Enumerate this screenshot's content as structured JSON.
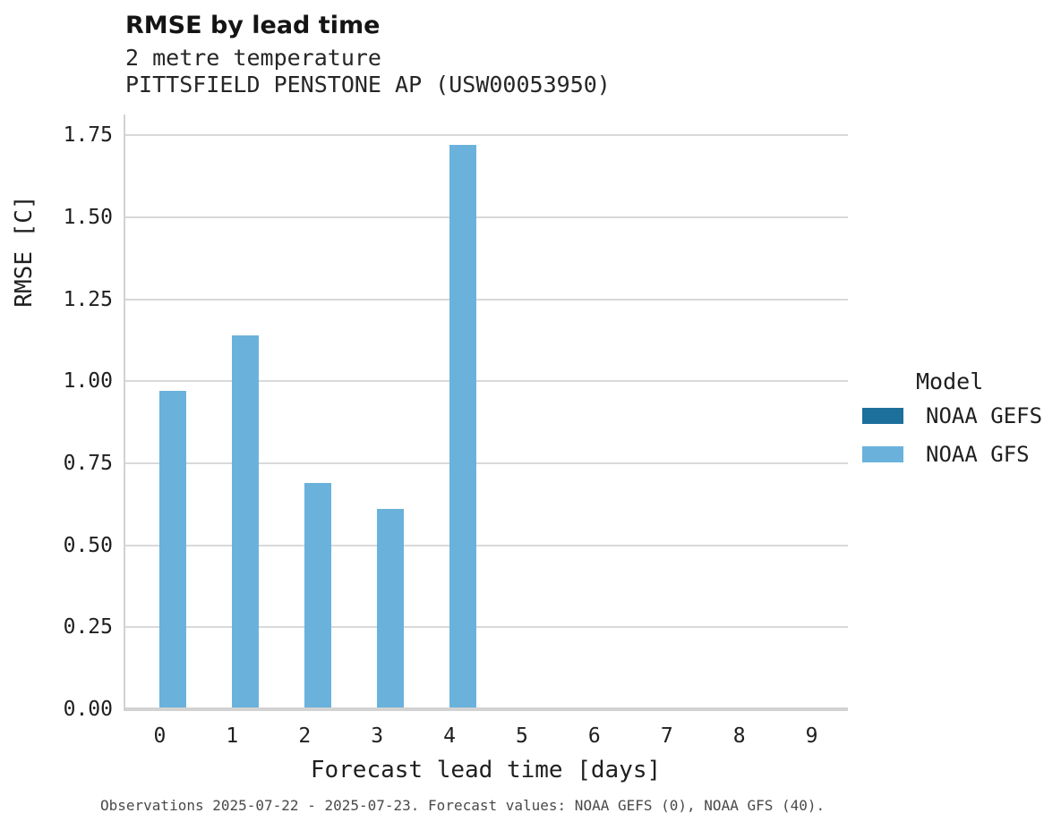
{
  "header": {
    "title": "RMSE by lead time",
    "subtitle_line1": "2 metre temperature",
    "subtitle_line2": "PITTSFIELD PENSTONE AP (USW00053950)"
  },
  "legend": {
    "title": "Model",
    "items": [
      {
        "label": "NOAA GEFS",
        "color": "#1d6f9c"
      },
      {
        "label": "NOAA GFS",
        "color": "#6ab2db"
      }
    ]
  },
  "caption": "Observations 2025-07-22 - 2025-07-23. Forecast values: NOAA GEFS (0), NOAA GFS (40).",
  "chart_data": {
    "type": "bar",
    "title": "RMSE by lead time",
    "subtitle": [
      "2 metre temperature",
      "PITTSFIELD PENSTONE AP (USW00053950)"
    ],
    "categories": [
      "0",
      "1",
      "2",
      "3",
      "4",
      "5",
      "6",
      "7",
      "8",
      "9"
    ],
    "series": [
      {
        "name": "NOAA GEFS",
        "color": "#1d6f9c",
        "values": [
          null,
          null,
          null,
          null,
          null,
          null,
          null,
          null,
          null,
          null
        ]
      },
      {
        "name": "NOAA GFS",
        "color": "#6ab2db",
        "values": [
          0.97,
          1.14,
          0.69,
          0.61,
          1.72,
          null,
          null,
          null,
          null,
          null
        ]
      }
    ],
    "xlabel": "Forecast lead time [days]",
    "ylabel": "RMSE [C]",
    "ylim": [
      0,
      1.813
    ],
    "yticks": [
      0.0,
      0.25,
      0.5,
      0.75,
      1.0,
      1.25,
      1.5,
      1.75
    ],
    "grid": "horizontal-only",
    "legend_position": "right",
    "legend_title": "Model"
  }
}
